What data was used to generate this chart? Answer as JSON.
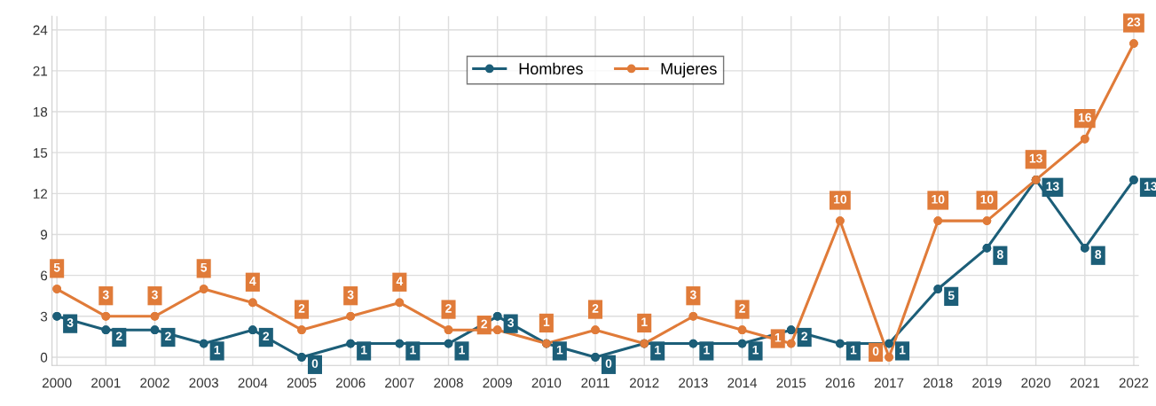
{
  "chart_data": {
    "type": "line",
    "categories": [
      "2000",
      "2001",
      "2002",
      "2003",
      "2004",
      "2005",
      "2006",
      "2007",
      "2008",
      "2009",
      "2010",
      "2011",
      "2012",
      "2013",
      "2014",
      "2015",
      "2016",
      "2017",
      "2018",
      "2019",
      "2020",
      "2021",
      "2022"
    ],
    "series": [
      {
        "name": "Hombres",
        "color": "#1c5e78",
        "values": [
          3,
          2,
          2,
          1,
          2,
          0,
          1,
          1,
          1,
          3,
          1,
          0,
          1,
          1,
          1,
          2,
          1,
          1,
          5,
          8,
          13,
          8,
          13
        ]
      },
      {
        "name": "Mujeres",
        "color": "#e07b39",
        "values": [
          5,
          3,
          3,
          5,
          4,
          2,
          3,
          4,
          2,
          2,
          1,
          2,
          1,
          3,
          2,
          1,
          10,
          0,
          10,
          10,
          13,
          16,
          23
        ]
      }
    ],
    "ylim": [
      -0.6,
      25
    ],
    "yticks": [
      0,
      3,
      6,
      9,
      12,
      15,
      18,
      21,
      24
    ],
    "grid": true,
    "legend": "top",
    "marker": "circle",
    "line_style": "solid",
    "data_labels": true
  }
}
